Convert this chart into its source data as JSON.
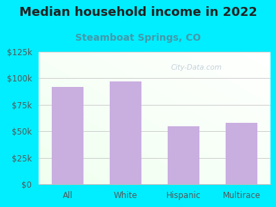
{
  "title": "Median household income in 2022",
  "subtitle": "Steamboat Springs, CO",
  "categories": [
    "All",
    "White",
    "Hispanic",
    "Multirace"
  ],
  "values": [
    92000,
    97000,
    55000,
    58000
  ],
  "bar_color": "#c9aee0",
  "background_outer": "#00eeff",
  "title_color": "#222222",
  "subtitle_color": "#4499aa",
  "tick_label_color": "#555555",
  "ylim": [
    0,
    125000
  ],
  "yticks": [
    0,
    25000,
    50000,
    75000,
    100000,
    125000
  ],
  "ytick_labels": [
    "$0",
    "$25k",
    "$50k",
    "$75k",
    "$100k",
    "$125k"
  ],
  "watermark": "City-Data.com",
  "title_fontsize": 13,
  "subtitle_fontsize": 10,
  "tick_fontsize": 8.5
}
